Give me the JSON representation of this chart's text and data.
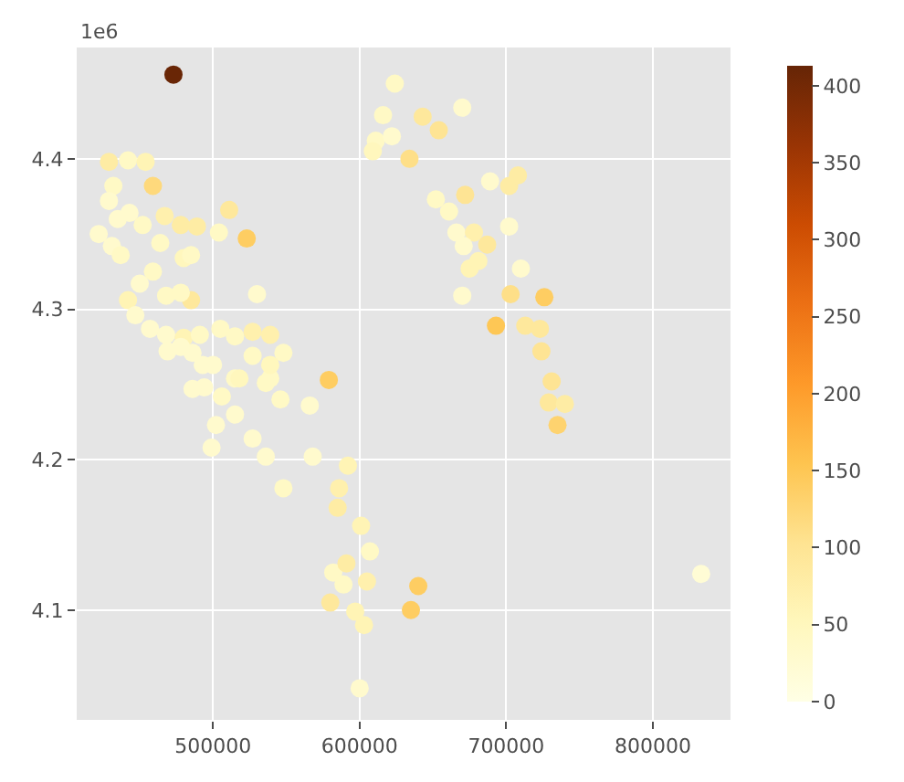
{
  "chart_data": {
    "type": "scatter",
    "x": [
      473000,
      429000,
      442000,
      454000,
      459000,
      432000,
      429000,
      443000,
      452000,
      467000,
      478000,
      489000,
      504000,
      511000,
      523000,
      464000,
      480000,
      485000,
      459000,
      468000,
      485000,
      530000,
      442000,
      447000,
      457000,
      468000,
      480000,
      491000,
      505000,
      515000,
      527000,
      539000,
      527000,
      548000,
      469000,
      486000,
      500000,
      515000,
      579000,
      539000,
      494000,
      566000,
      546000,
      502000,
      499000,
      515000,
      527000,
      536000,
      548000,
      568000,
      592000,
      586000,
      585000,
      601000,
      607000,
      582000,
      591000,
      589000,
      605000,
      580000,
      597000,
      603000,
      640000,
      635000,
      600000,
      486000,
      506000,
      518000,
      536000,
      539000,
      493000,
      478000,
      624000,
      616000,
      611000,
      622000,
      609000,
      643000,
      654000,
      670000,
      634000,
      689000,
      702000,
      708000,
      652000,
      661000,
      672000,
      666000,
      678000,
      687000,
      671000,
      702000,
      675000,
      681000,
      710000,
      670000,
      703000,
      726000,
      693000,
      713000,
      723000,
      724000,
      731000,
      729000,
      740000,
      735000,
      833000,
      422000,
      431000,
      437000,
      450000,
      435000,
      478000
    ],
    "values": [
      4.456,
      4.398,
      4.399,
      4.398,
      4.382,
      4.382,
      4.372,
      4.364,
      4.356,
      4.362,
      4.356,
      4.355,
      4.351,
      4.366,
      4.347,
      4.344,
      4.334,
      4.336,
      4.325,
      4.309,
      4.306,
      4.31,
      4.306,
      4.296,
      4.287,
      4.283,
      4.281,
      4.283,
      4.287,
      4.282,
      4.285,
      4.283,
      4.269,
      4.271,
      4.272,
      4.271,
      4.263,
      4.254,
      4.253,
      4.254,
      4.248,
      4.236,
      4.24,
      4.223,
      4.208,
      4.23,
      4.214,
      4.202,
      4.181,
      4.202,
      4.196,
      4.181,
      4.168,
      4.156,
      4.139,
      4.125,
      4.131,
      4.117,
      4.119,
      4.105,
      4.099,
      4.09,
      4.116,
      4.1,
      4.048,
      4.247,
      4.242,
      4.254,
      4.251,
      4.263,
      4.263,
      4.275,
      4.45,
      4.429,
      4.412,
      4.415,
      4.405,
      4.428,
      4.419,
      4.434,
      4.4,
      4.385,
      4.382,
      4.389,
      4.373,
      4.365,
      4.376,
      4.351,
      4.351,
      4.343,
      4.342,
      4.355,
      4.327,
      4.332,
      4.327,
      4.309,
      4.31,
      4.308,
      4.289,
      4.289,
      4.287,
      4.272,
      4.252,
      4.238,
      4.237,
      4.223,
      4.124,
      4.35,
      4.342,
      4.336,
      4.317,
      4.36,
      4.311
    ],
    "cvalues": [
      410,
      80,
      40,
      60,
      120,
      40,
      30,
      30,
      40,
      70,
      80,
      80,
      40,
      90,
      140,
      40,
      50,
      40,
      40,
      40,
      90,
      30,
      60,
      30,
      30,
      30,
      60,
      40,
      40,
      40,
      70,
      70,
      40,
      40,
      30,
      30,
      30,
      40,
      140,
      40,
      30,
      30,
      40,
      30,
      30,
      30,
      30,
      30,
      40,
      30,
      60,
      70,
      80,
      60,
      40,
      40,
      80,
      40,
      70,
      90,
      60,
      60,
      140,
      140,
      30,
      30,
      40,
      50,
      40,
      50,
      30,
      30,
      40,
      40,
      40,
      30,
      50,
      90,
      100,
      30,
      110,
      30,
      80,
      80,
      40,
      40,
      100,
      30,
      70,
      90,
      30,
      30,
      60,
      60,
      30,
      30,
      110,
      140,
      150,
      90,
      90,
      100,
      100,
      90,
      80,
      130,
      20,
      30,
      30,
      40,
      30,
      30,
      40
    ],
    "marker": "circle",
    "xlim": [
      407000,
      853000
    ],
    "ylim": [
      4.027,
      4.474
    ],
    "xticks": [
      500000,
      600000,
      700000,
      800000
    ],
    "yticks": [
      4.1,
      4.2,
      4.3,
      4.4
    ],
    "clim": [
      0,
      413
    ],
    "cticks": [
      0,
      50,
      100,
      150,
      200,
      250,
      300,
      350,
      400
    ],
    "annotations": [
      "1e6"
    ],
    "grid": true
  }
}
